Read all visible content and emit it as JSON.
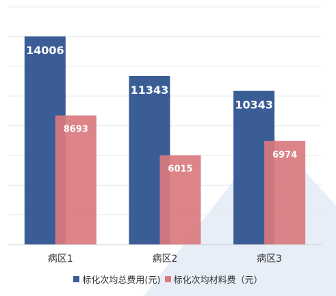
{
  "chart_data": {
    "type": "bar",
    "categories": [
      "病区1",
      "病区2",
      "病区3"
    ],
    "series": [
      {
        "name": "标化次均总费用(元)",
        "values": [
          14006,
          11343,
          10343
        ],
        "color": "#3a5d96"
      },
      {
        "name": "标化次均材料费（元）",
        "values": [
          8693,
          6015,
          6974
        ],
        "color": "#d97a7e"
      }
    ],
    "ylim": [
      0,
      16000
    ],
    "grid": true,
    "legend_position": "bottom",
    "title": "",
    "xlabel": "",
    "ylabel": ""
  }
}
